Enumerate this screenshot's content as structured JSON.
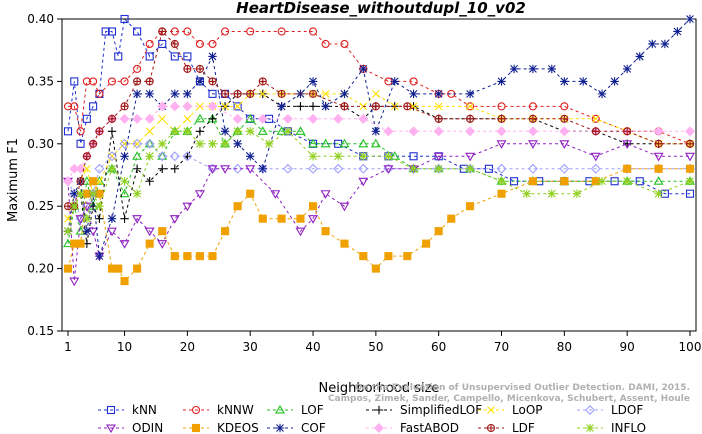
{
  "chart_data": {
    "type": "line",
    "title": "HeartDisease_withoutdupl_10_v02",
    "xlabel": "Neighborhood size",
    "ylabel": "Maximum F1",
    "xlim": [
      1,
      100
    ],
    "ylim": [
      0.15,
      0.4
    ],
    "xticks": [
      "1",
      "10",
      "20",
      "30",
      "40",
      "50",
      "60",
      "70",
      "80",
      "90",
      "100"
    ],
    "yticks": [
      "0.15",
      "0.20",
      "0.25",
      "0.30",
      "0.35",
      "0.40"
    ],
    "legend_position": "bottom",
    "watermark": [
      "On the Evaluation of Unsupervised Outlier Detection. DAMI, 2015.",
      "Campos, Zimek, Sander, Campello, Micenkova, Schubert, Assent, Houle"
    ],
    "series": [
      {
        "name": "kNN",
        "color": "#1f2fd0",
        "marker": "square",
        "x": [
          1,
          2,
          3,
          4,
          5,
          6,
          7,
          8,
          9,
          10,
          12,
          14,
          16,
          18,
          20,
          22,
          24,
          26,
          28,
          30,
          33,
          36,
          40,
          44,
          48,
          52,
          56,
          60,
          64,
          68,
          72,
          76,
          80,
          84,
          88,
          92,
          96,
          100
        ],
        "y": [
          0.31,
          0.35,
          0.3,
          0.32,
          0.33,
          0.34,
          0.39,
          0.39,
          0.37,
          0.4,
          0.39,
          0.37,
          0.38,
          0.37,
          0.37,
          0.35,
          0.34,
          0.34,
          0.33,
          0.32,
          0.32,
          0.31,
          0.3,
          0.3,
          0.29,
          0.29,
          0.29,
          0.29,
          0.28,
          0.28,
          0.27,
          0.27,
          0.27,
          0.27,
          0.27,
          0.27,
          0.26,
          0.26
        ]
      },
      {
        "name": "kNNW",
        "color": "#e02020",
        "marker": "circle",
        "x": [
          1,
          2,
          3,
          4,
          5,
          6,
          8,
          10,
          12,
          14,
          16,
          18,
          20,
          22,
          24,
          26,
          30,
          35,
          40,
          42,
          45,
          48,
          52,
          56,
          60,
          62,
          65,
          70,
          75,
          80,
          85,
          90,
          95,
          100
        ],
        "y": [
          0.33,
          0.33,
          0.31,
          0.35,
          0.35,
          0.34,
          0.35,
          0.35,
          0.36,
          0.38,
          0.39,
          0.39,
          0.39,
          0.38,
          0.38,
          0.39,
          0.39,
          0.39,
          0.39,
          0.38,
          0.38,
          0.36,
          0.35,
          0.35,
          0.34,
          0.34,
          0.33,
          0.33,
          0.33,
          0.33,
          0.32,
          0.31,
          0.31,
          0.3
        ]
      },
      {
        "name": "LOF",
        "color": "#20c020",
        "marker": "triangle",
        "x": [
          1,
          2,
          3,
          4,
          5,
          6,
          8,
          10,
          12,
          14,
          16,
          18,
          20,
          22,
          24,
          26,
          28,
          30,
          32,
          35,
          38,
          40,
          42,
          45,
          48,
          50,
          53,
          56,
          60,
          65,
          70,
          75,
          80,
          85,
          90,
          95,
          100
        ],
        "y": [
          0.22,
          0.25,
          0.23,
          0.27,
          0.25,
          0.27,
          0.28,
          0.26,
          0.29,
          0.3,
          0.29,
          0.31,
          0.31,
          0.32,
          0.32,
          0.3,
          0.31,
          0.32,
          0.31,
          0.31,
          0.31,
          0.3,
          0.3,
          0.3,
          0.3,
          0.3,
          0.29,
          0.28,
          0.28,
          0.28,
          0.27,
          0.27,
          0.27,
          0.27,
          0.27,
          0.27,
          0.27
        ]
      },
      {
        "name": "SimplifiedLOF",
        "color": "#000000",
        "marker": "plus",
        "x": [
          1,
          2,
          3,
          4,
          5,
          6,
          8,
          10,
          12,
          14,
          16,
          18,
          20,
          22,
          24,
          26,
          28,
          30,
          32,
          35,
          38,
          40,
          42,
          45,
          48,
          50,
          53,
          56,
          60,
          65,
          70,
          75,
          80,
          85,
          90,
          95,
          100
        ],
        "y": [
          0.23,
          0.25,
          0.26,
          0.22,
          0.25,
          0.24,
          0.31,
          0.24,
          0.28,
          0.27,
          0.28,
          0.28,
          0.29,
          0.31,
          0.32,
          0.33,
          0.34,
          0.34,
          0.34,
          0.33,
          0.33,
          0.33,
          0.33,
          0.33,
          0.32,
          0.33,
          0.33,
          0.33,
          0.32,
          0.32,
          0.32,
          0.32,
          0.31,
          0.31,
          0.3,
          0.3,
          0.3
        ]
      },
      {
        "name": "LoOP",
        "color": "#ffe000",
        "marker": "x",
        "x": [
          1,
          2,
          3,
          4,
          5,
          6,
          8,
          10,
          12,
          14,
          16,
          18,
          20,
          22,
          24,
          26,
          28,
          30,
          32,
          35,
          38,
          40,
          42,
          45,
          48,
          50,
          53,
          56,
          60,
          65,
          70,
          75,
          80,
          85,
          90,
          95,
          100
        ],
        "y": [
          0.24,
          0.26,
          0.27,
          0.28,
          0.26,
          0.27,
          0.29,
          0.3,
          0.3,
          0.31,
          0.32,
          0.31,
          0.32,
          0.33,
          0.33,
          0.33,
          0.33,
          0.34,
          0.34,
          0.34,
          0.34,
          0.34,
          0.34,
          0.34,
          0.33,
          0.34,
          0.33,
          0.33,
          0.33,
          0.33,
          0.32,
          0.32,
          0.32,
          0.32,
          0.31,
          0.3,
          0.3
        ]
      },
      {
        "name": "LDOF",
        "color": "#a0a0ff",
        "marker": "diamond",
        "x": [
          1,
          2,
          3,
          4,
          5,
          6,
          8,
          10,
          12,
          14,
          16,
          18,
          20,
          24,
          28,
          32,
          36,
          40,
          44,
          48,
          52,
          56,
          60,
          65,
          70,
          75,
          80,
          85,
          90,
          95,
          100
        ],
        "y": [
          0.27,
          0.26,
          0.24,
          0.25,
          0.26,
          0.28,
          0.29,
          0.3,
          0.3,
          0.3,
          0.29,
          0.29,
          0.29,
          0.28,
          0.28,
          0.28,
          0.28,
          0.28,
          0.28,
          0.28,
          0.28,
          0.28,
          0.28,
          0.28,
          0.28,
          0.28,
          0.28,
          0.28,
          0.28,
          0.28,
          0.28
        ]
      },
      {
        "name": "ODIN",
        "color": "#9020c0",
        "marker": "triangle-down",
        "x": [
          1,
          2,
          3,
          4,
          5,
          6,
          8,
          10,
          12,
          14,
          16,
          18,
          20,
          22,
          24,
          26,
          30,
          34,
          38,
          40,
          42,
          45,
          48,
          52,
          56,
          60,
          65,
          70,
          75,
          80,
          85,
          90,
          95,
          100
        ],
        "y": [
          0.27,
          0.19,
          0.24,
          0.25,
          0.23,
          0.21,
          0.23,
          0.22,
          0.24,
          0.23,
          0.22,
          0.24,
          0.25,
          0.26,
          0.28,
          0.28,
          0.28,
          0.26,
          0.23,
          0.24,
          0.26,
          0.25,
          0.27,
          0.28,
          0.28,
          0.29,
          0.29,
          0.3,
          0.3,
          0.3,
          0.29,
          0.3,
          0.29,
          0.29
        ]
      },
      {
        "name": "KDEOS",
        "color": "#f0a000",
        "marker": "square-filled",
        "x": [
          1,
          2,
          3,
          4,
          5,
          6,
          8,
          9,
          10,
          12,
          14,
          16,
          18,
          20,
          22,
          24,
          26,
          28,
          30,
          32,
          35,
          38,
          40,
          42,
          45,
          48,
          50,
          52,
          55,
          58,
          60,
          62,
          65,
          70,
          75,
          80,
          85,
          90,
          95,
          100
        ],
        "y": [
          0.2,
          0.22,
          0.22,
          0.26,
          0.27,
          0.26,
          0.2,
          0.2,
          0.19,
          0.2,
          0.22,
          0.23,
          0.21,
          0.21,
          0.21,
          0.21,
          0.23,
          0.25,
          0.26,
          0.24,
          0.24,
          0.24,
          0.25,
          0.23,
          0.22,
          0.21,
          0.2,
          0.21,
          0.21,
          0.22,
          0.23,
          0.24,
          0.25,
          0.26,
          0.27,
          0.27,
          0.27,
          0.28,
          0.28,
          0.28
        ]
      },
      {
        "name": "COF",
        "color": "#102090",
        "marker": "star",
        "x": [
          1,
          2,
          3,
          4,
          5,
          6,
          8,
          10,
          12,
          14,
          16,
          18,
          20,
          22,
          24,
          26,
          28,
          30,
          32,
          35,
          38,
          40,
          42,
          45,
          48,
          50,
          53,
          56,
          60,
          65,
          70,
          72,
          75,
          78,
          80,
          83,
          86,
          88,
          90,
          92,
          94,
          96,
          98,
          100
        ],
        "y": [
          0.23,
          0.26,
          0.27,
          0.23,
          0.26,
          0.21,
          0.24,
          0.29,
          0.34,
          0.34,
          0.33,
          0.34,
          0.34,
          0.35,
          0.37,
          0.31,
          0.3,
          0.29,
          0.28,
          0.33,
          0.34,
          0.35,
          0.33,
          0.34,
          0.36,
          0.31,
          0.35,
          0.34,
          0.34,
          0.34,
          0.35,
          0.36,
          0.36,
          0.36,
          0.35,
          0.35,
          0.34,
          0.35,
          0.36,
          0.37,
          0.38,
          0.38,
          0.39,
          0.4
        ]
      },
      {
        "name": "FastABOD",
        "color": "#ffb0f0",
        "marker": "diamond-filled",
        "x": [
          1,
          2,
          3,
          4,
          5,
          6,
          8,
          10,
          12,
          14,
          16,
          18,
          20,
          24,
          28,
          32,
          36,
          40,
          44,
          48,
          52,
          56,
          60,
          65,
          70,
          75,
          80,
          85,
          90,
          95,
          100
        ],
        "y": [
          0.27,
          0.28,
          0.28,
          0.29,
          0.3,
          0.31,
          0.32,
          0.32,
          0.32,
          0.32,
          0.33,
          0.33,
          0.33,
          0.33,
          0.32,
          0.32,
          0.32,
          0.32,
          0.32,
          0.32,
          0.31,
          0.31,
          0.31,
          0.31,
          0.31,
          0.31,
          0.31,
          0.31,
          0.31,
          0.31,
          0.31
        ]
      },
      {
        "name": "LDF",
        "color": "#a01818",
        "marker": "circle-plus",
        "x": [
          1,
          2,
          3,
          4,
          5,
          6,
          8,
          10,
          12,
          14,
          16,
          18,
          20,
          22,
          24,
          26,
          28,
          30,
          32,
          35,
          40,
          45,
          50,
          55,
          60,
          65,
          70,
          75,
          80,
          85,
          90,
          95,
          100
        ],
        "y": [
          0.25,
          0.25,
          0.27,
          0.29,
          0.3,
          0.31,
          0.32,
          0.33,
          0.35,
          0.35,
          0.39,
          0.38,
          0.36,
          0.36,
          0.35,
          0.34,
          0.34,
          0.34,
          0.35,
          0.34,
          0.34,
          0.33,
          0.33,
          0.33,
          0.32,
          0.32,
          0.32,
          0.32,
          0.32,
          0.31,
          0.31,
          0.3,
          0.3
        ]
      },
      {
        "name": "INFLO",
        "color": "#90d020",
        "marker": "asterisk",
        "x": [
          1,
          2,
          3,
          4,
          5,
          6,
          8,
          10,
          12,
          14,
          16,
          18,
          20,
          22,
          24,
          26,
          28,
          30,
          33,
          36,
          40,
          44,
          48,
          52,
          56,
          60,
          65,
          70,
          74,
          78,
          82,
          86,
          90,
          95,
          100
        ],
        "y": [
          0.23,
          0.25,
          0.26,
          0.24,
          0.26,
          0.25,
          0.28,
          0.27,
          0.26,
          0.29,
          0.3,
          0.31,
          0.31,
          0.3,
          0.3,
          0.3,
          0.31,
          0.31,
          0.3,
          0.31,
          0.29,
          0.29,
          0.29,
          0.29,
          0.28,
          0.28,
          0.28,
          0.27,
          0.26,
          0.26,
          0.26,
          0.27,
          0.27,
          0.26,
          0.27
        ]
      }
    ]
  }
}
